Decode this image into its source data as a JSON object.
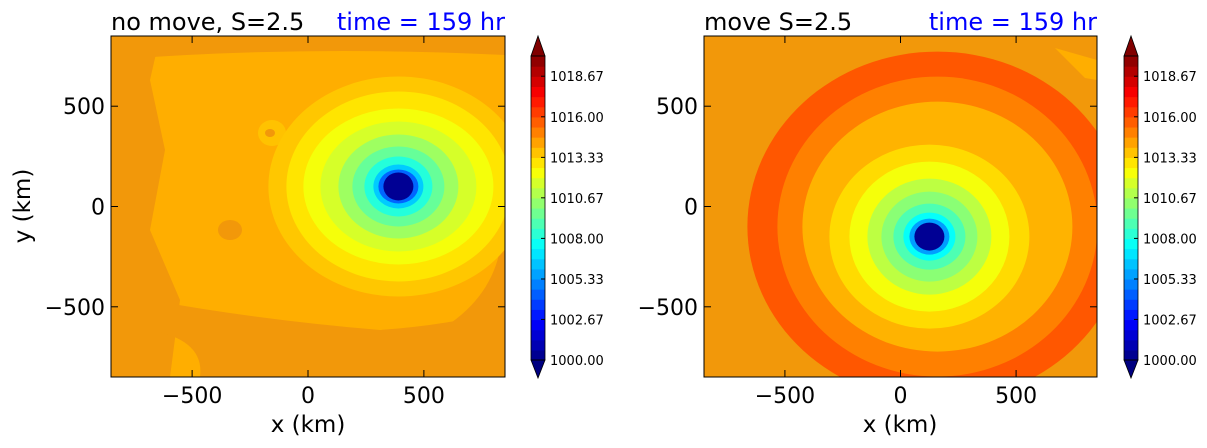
{
  "colors": {
    "background": "#f2980a",
    "contours": [
      "#00007f",
      "#0000c8",
      "#0019ff",
      "#0078ff",
      "#00d8ff",
      "#29ffce",
      "#7dff7a",
      "#ceff29",
      "#ffe500",
      "#ffc200",
      "#ffae00",
      "#ff9800"
    ]
  },
  "chart_data": [
    {
      "type": "heatmap",
      "title": "no move, S=2.5",
      "time_label": "time = 159 hr",
      "xlabel": "x (km)",
      "ylabel": "y (km)",
      "xlim": [
        -850,
        850
      ],
      "ylim": [
        -850,
        850
      ],
      "xticks": [
        "−500",
        "0",
        "500"
      ],
      "xtick_values": [
        -500,
        0,
        500
      ],
      "yticks": [
        "500",
        "0",
        "−500"
      ],
      "ytick_values": [
        500,
        0,
        -500
      ],
      "center_km": [
        390,
        100
      ],
      "center_value": 1000.0,
      "background_value": 1015.5
    },
    {
      "type": "heatmap",
      "title": "move S=2.5",
      "time_label": "time = 159 hr",
      "xlabel": "x (km)",
      "ylabel": "",
      "xlim": [
        -850,
        850
      ],
      "ylim": [
        -850,
        850
      ],
      "xticks": [
        "−500",
        "0",
        "500"
      ],
      "xtick_values": [
        -500,
        0,
        500
      ],
      "yticks": [
        "500",
        "0",
        "−500"
      ],
      "yticks_values": [
        500,
        0,
        -500
      ],
      "ytick_values": [
        500,
        0,
        -500
      ],
      "center_km": [
        125,
        -150
      ],
      "center_value": 1000.0,
      "background_value": 1015.5
    }
  ],
  "colorbar": {
    "min": 1000.0,
    "max": 1020.0,
    "levels": 30,
    "ticks": [
      "1018.67",
      "1016.00",
      "1013.33",
      "1010.67",
      "1008.00",
      "1005.33",
      "1002.67",
      "1000.00"
    ],
    "tick_values": [
      1018.67,
      1016.0,
      1013.33,
      1010.67,
      1008.0,
      1005.33,
      1002.67,
      1000.0
    ]
  }
}
